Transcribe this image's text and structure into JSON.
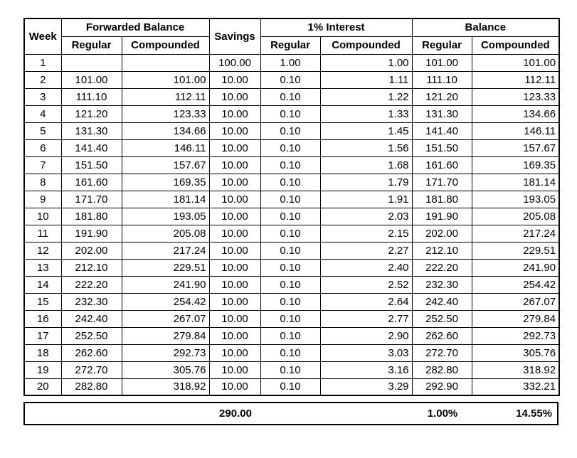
{
  "colors": {
    "background": "#ffffff",
    "grid_border": "#000000",
    "text": "#000000"
  },
  "table": {
    "header": {
      "week": "Week",
      "forwarded_balance": "Forwarded Balance",
      "savings": "Savings",
      "interest": "1% Interest",
      "balance": "Balance",
      "regular": "Regular",
      "compounded": "Compounded"
    },
    "rows": [
      [
        "1",
        "",
        "",
        "100.00",
        "1.00",
        "1.00",
        "101.00",
        "101.00"
      ],
      [
        "2",
        "101.00",
        "101.00",
        "10.00",
        "0.10",
        "1.11",
        "111.10",
        "112.11"
      ],
      [
        "3",
        "111.10",
        "112.11",
        "10.00",
        "0.10",
        "1.22",
        "121.20",
        "123.33"
      ],
      [
        "4",
        "121.20",
        "123.33",
        "10.00",
        "0.10",
        "1.33",
        "131.30",
        "134.66"
      ],
      [
        "5",
        "131.30",
        "134.66",
        "10.00",
        "0.10",
        "1.45",
        "141.40",
        "146.11"
      ],
      [
        "6",
        "141.40",
        "146.11",
        "10.00",
        "0.10",
        "1.56",
        "151.50",
        "157.67"
      ],
      [
        "7",
        "151.50",
        "157.67",
        "10.00",
        "0.10",
        "1.68",
        "161.60",
        "169.35"
      ],
      [
        "8",
        "161.60",
        "169.35",
        "10.00",
        "0.10",
        "1.79",
        "171.70",
        "181.14"
      ],
      [
        "9",
        "171.70",
        "181.14",
        "10.00",
        "0.10",
        "1.91",
        "181.80",
        "193.05"
      ],
      [
        "10",
        "181.80",
        "193.05",
        "10.00",
        "0.10",
        "2.03",
        "191.90",
        "205.08"
      ],
      [
        "11",
        "191.90",
        "205.08",
        "10.00",
        "0.10",
        "2.15",
        "202.00",
        "217.24"
      ],
      [
        "12",
        "202.00",
        "217.24",
        "10.00",
        "0.10",
        "2.27",
        "212.10",
        "229.51"
      ],
      [
        "13",
        "212.10",
        "229.51",
        "10.00",
        "0.10",
        "2.40",
        "222.20",
        "241.90"
      ],
      [
        "14",
        "222.20",
        "241.90",
        "10.00",
        "0.10",
        "2.52",
        "232.30",
        "254.42"
      ],
      [
        "15",
        "232.30",
        "254.42",
        "10.00",
        "0.10",
        "2.64",
        "242.40",
        "267.07"
      ],
      [
        "16",
        "242.40",
        "267.07",
        "10.00",
        "0.10",
        "2.77",
        "252.50",
        "279.84"
      ],
      [
        "17",
        "252.50",
        "279.84",
        "10.00",
        "0.10",
        "2.90",
        "262.60",
        "292.73"
      ],
      [
        "18",
        "262.60",
        "292.73",
        "10.00",
        "0.10",
        "3.03",
        "272.70",
        "305.76"
      ],
      [
        "19",
        "272.70",
        "305.76",
        "10.00",
        "0.10",
        "3.16",
        "282.80",
        "318.92"
      ],
      [
        "20",
        "282.80",
        "318.92",
        "10.00",
        "0.10",
        "3.29",
        "292.90",
        "332.21"
      ]
    ],
    "footer": {
      "savings_total": "290.00",
      "regular_rate": "1.00%",
      "compounded_rate": "14.55%"
    }
  }
}
